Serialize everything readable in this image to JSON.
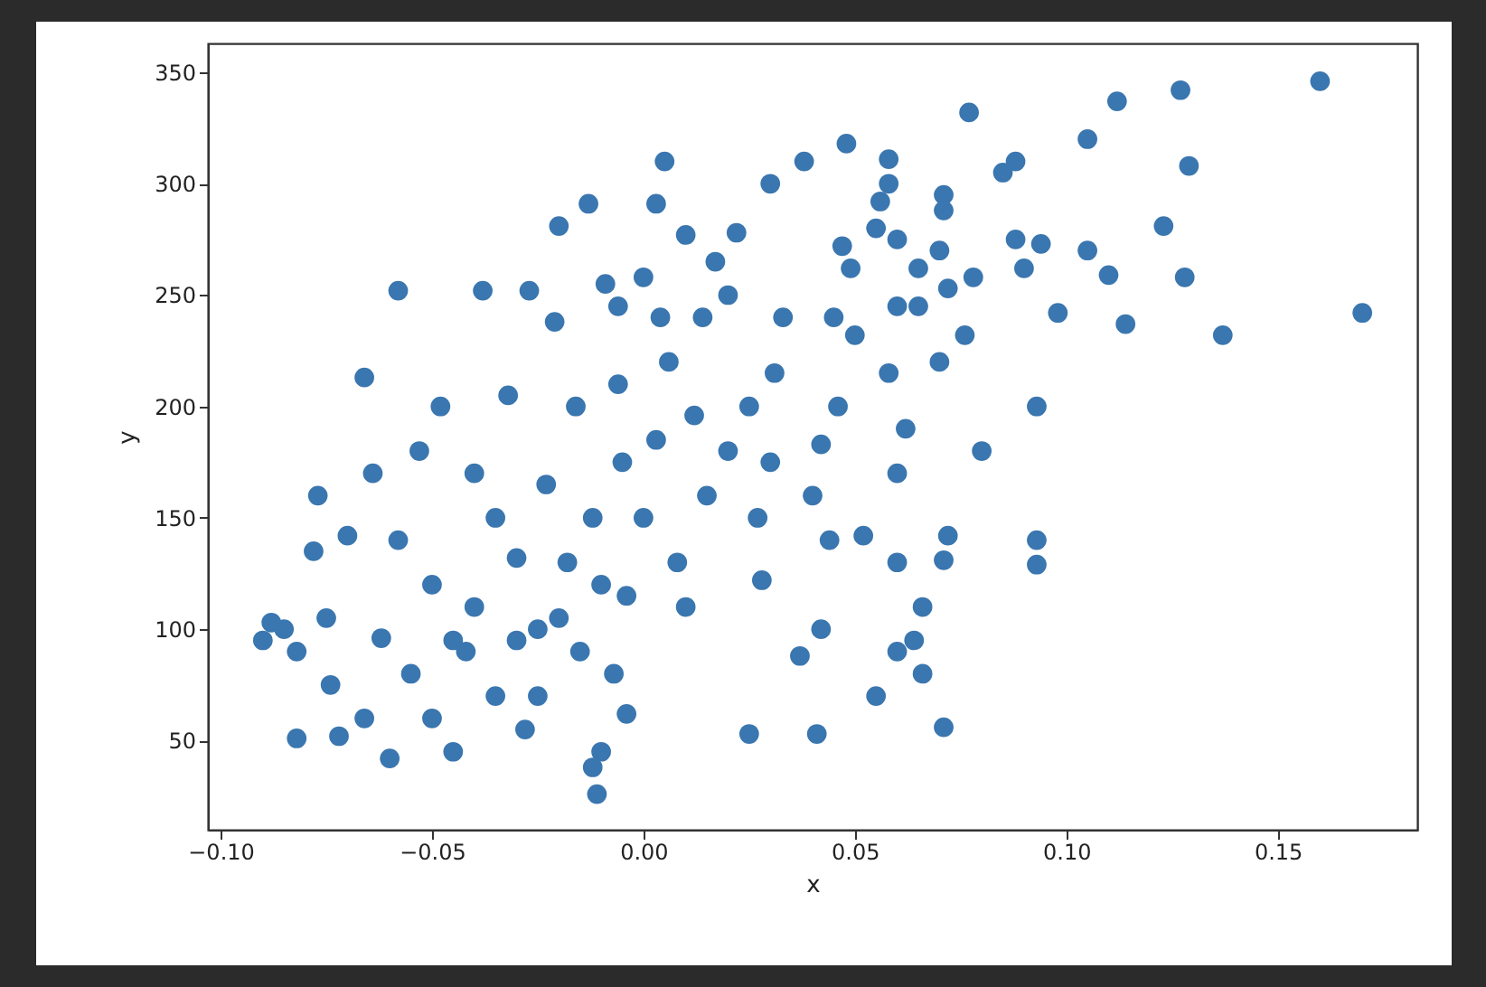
{
  "chart_data": {
    "type": "scatter",
    "xlabel": "x",
    "ylabel": "y",
    "color": "#3a76af",
    "marker": "circle",
    "grid": false,
    "xlim": [
      -0.103,
      0.183
    ],
    "ylim": [
      10,
      363
    ],
    "xticks": [
      {
        "value": -0.1,
        "label": "−0.10"
      },
      {
        "value": -0.05,
        "label": "−0.05"
      },
      {
        "value": 0,
        "label": "0.00"
      },
      {
        "value": 0.05,
        "label": "0.05"
      },
      {
        "value": 0.1,
        "label": "0.10"
      },
      {
        "value": 0.15,
        "label": "0.15"
      }
    ],
    "yticks": [
      50,
      100,
      150,
      200,
      250,
      300,
      350
    ],
    "x": [
      0.16,
      0.17,
      0.137,
      0.127,
      0.112,
      0.129,
      0.123,
      0.128,
      0.114,
      0.105,
      0.105,
      0.11,
      0.094,
      0.098,
      0.093,
      0.093,
      0.093,
      0.088,
      0.085,
      0.088,
      0.09,
      0.08,
      0.077,
      0.076,
      0.078,
      0.071,
      0.071,
      0.07,
      0.072,
      0.07,
      0.072,
      0.071,
      0.071,
      0.065,
      0.065,
      0.066,
      0.064,
      0.066,
      0.058,
      0.058,
      0.056,
      0.06,
      0.055,
      0.06,
      0.058,
      0.062,
      0.06,
      0.06,
      0.06,
      0.055,
      0.052,
      0.048,
      0.047,
      0.049,
      0.05,
      0.046,
      0.042,
      0.044,
      0.042,
      0.041,
      0.038,
      0.037,
      0.033,
      0.031,
      0.03,
      0.027,
      0.028,
      0.025,
      0.022,
      0.02,
      0.017,
      0.014,
      0.01,
      0.012,
      0.008,
      0.005,
      0.003,
      0.004,
      0.003,
      0.0,
      0.0,
      -0.004,
      -0.006,
      -0.006,
      -0.007,
      -0.004,
      -0.009,
      -0.01,
      -0.011,
      -0.012,
      -0.013,
      -0.016,
      -0.02,
      -0.021,
      -0.023,
      -0.025,
      -0.027,
      -0.03,
      -0.032,
      -0.035,
      -0.038,
      -0.04,
      -0.042,
      -0.045,
      -0.048,
      -0.05,
      -0.053,
      -0.055,
      -0.058,
      -0.058,
      -0.06,
      -0.062,
      -0.064,
      -0.066,
      -0.066,
      -0.07,
      -0.072,
      -0.074,
      -0.075,
      -0.077,
      -0.078,
      -0.082,
      -0.082,
      -0.085,
      -0.088,
      -0.09,
      -0.03,
      -0.02,
      -0.015,
      -0.025,
      -0.04,
      -0.01,
      -0.035,
      0.015,
      0.02,
      -0.005,
      0.01,
      -0.05,
      -0.028,
      0.03,
      0.04,
      -0.045,
      -0.012,
      0.006,
      0.025,
      0.045,
      -0.018
    ],
    "values": [
      346,
      242,
      232,
      342,
      337,
      308,
      281,
      258,
      237,
      320,
      270,
      259,
      273,
      242,
      200,
      140,
      129,
      310,
      305,
      275,
      262,
      180,
      332,
      232,
      258,
      295,
      288,
      270,
      253,
      220,
      142,
      131,
      56,
      262,
      245,
      110,
      95,
      80,
      311,
      300,
      292,
      275,
      280,
      245,
      215,
      190,
      170,
      130,
      90,
      70,
      142,
      318,
      272,
      262,
      232,
      200,
      183,
      140,
      100,
      53,
      310,
      88,
      240,
      215,
      300,
      150,
      122,
      53,
      278,
      250,
      265,
      240,
      277,
      196,
      130,
      310,
      291,
      240,
      185,
      258,
      150,
      115,
      245,
      210,
      80,
      62,
      255,
      45,
      26,
      38,
      291,
      200,
      281,
      238,
      165,
      100,
      252,
      132,
      205,
      70,
      252,
      170,
      90,
      45,
      200,
      120,
      180,
      80,
      252,
      140,
      42,
      96,
      170,
      213,
      60,
      142,
      52,
      75,
      105,
      160,
      135,
      51,
      90,
      100,
      103,
      95,
      95,
      105,
      90,
      70,
      110,
      120,
      150,
      160,
      180,
      175,
      110,
      60,
      55,
      175,
      160,
      95,
      150,
      220,
      200,
      240,
      130
    ]
  }
}
